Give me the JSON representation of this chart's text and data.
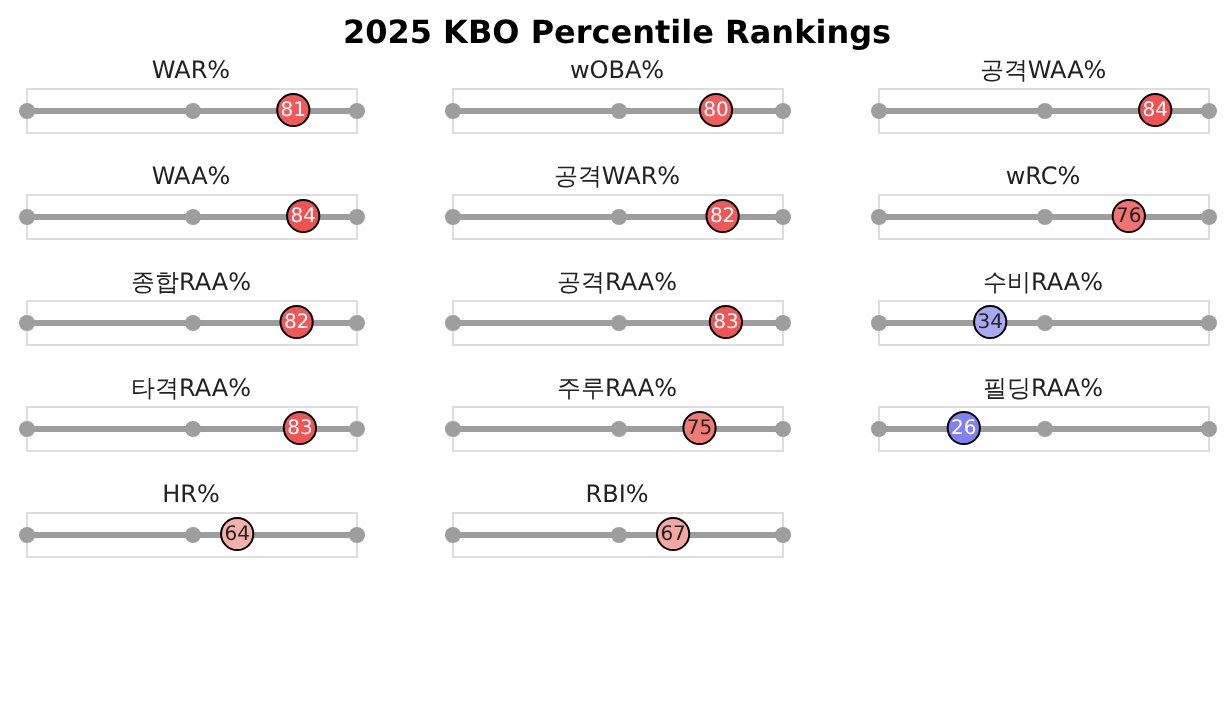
{
  "chart_data": [
    {
      "type": "other",
      "title": "2025 KBO Percentile Rankings"
    },
    {
      "type": "other",
      "title": "WAR%",
      "values": [
        81
      ],
      "colors": [
        "#f05a5a"
      ],
      "data_labels": true
    },
    {
      "type": "other",
      "title": "wOBA%",
      "values": [
        80
      ],
      "colors": [
        "#f05c5c"
      ],
      "data_labels": true
    },
    {
      "type": "other",
      "title": "공격WAA%",
      "values": [
        84
      ],
      "colors": [
        "#f05252"
      ],
      "data_labels": true
    },
    {
      "type": "other",
      "title": "WAA%",
      "values": [
        84
      ],
      "colors": [
        "#f05252"
      ],
      "data_labels": true
    },
    {
      "type": "other",
      "title": "공격WAR%",
      "values": [
        82
      ],
      "colors": [
        "#f05858"
      ],
      "data_labels": true
    },
    {
      "type": "other",
      "title": "wRC%",
      "values": [
        76
      ],
      "colors": [
        "#f27272"
      ],
      "data_labels": true
    },
    {
      "type": "other",
      "title": "종합RAA%",
      "values": [
        82
      ],
      "colors": [
        "#f05858"
      ],
      "data_labels": true
    },
    {
      "type": "other",
      "title": "공격RAA%",
      "values": [
        83
      ],
      "colors": [
        "#f05555"
      ],
      "data_labels": true
    },
    {
      "type": "other",
      "title": "수비RAA%",
      "values": [
        34
      ],
      "colors": [
        "#a9a9f2"
      ],
      "data_labels": true
    },
    {
      "type": "other",
      "title": "타격RAA%",
      "values": [
        83
      ],
      "colors": [
        "#f05555"
      ],
      "data_labels": true
    },
    {
      "type": "other",
      "title": "주루RAA%",
      "values": [
        75
      ],
      "colors": [
        "#f27a74"
      ],
      "data_labels": true
    },
    {
      "type": "other",
      "title": "필딩RAA%",
      "values": [
        26
      ],
      "colors": [
        "#8080f0"
      ],
      "data_labels": true
    },
    {
      "type": "other",
      "title": "HR%",
      "values": [
        64
      ],
      "colors": [
        "#f5b0aa"
      ],
      "data_labels": true
    },
    {
      "type": "other",
      "title": "RBI%",
      "values": [
        67
      ],
      "colors": [
        "#f4a6a0"
      ],
      "data_labels": true
    }
  ]
}
